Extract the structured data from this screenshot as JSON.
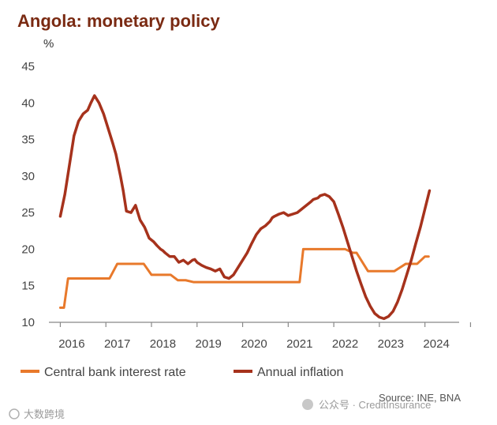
{
  "chart_data": {
    "type": "line",
    "title": "Angola: monetary policy",
    "ylabel": "%",
    "ylim": [
      10,
      45
    ],
    "xlim": [
      2015.75,
      2024.75
    ],
    "yticks": [
      10,
      15,
      20,
      25,
      30,
      35,
      40,
      45
    ],
    "xtick_labels": [
      "2016",
      "2017",
      "2018",
      "2019",
      "2020",
      "2021",
      "2022",
      "2023",
      "2024"
    ],
    "xtick_positions": [
      2016.25,
      2017.25,
      2018.25,
      2019.25,
      2020.25,
      2021.25,
      2022.25,
      2023.25,
      2024.25
    ],
    "year_boundaries": [
      2016,
      2017,
      2018,
      2019,
      2020,
      2021,
      2022,
      2023,
      2024,
      2025
    ],
    "series": [
      {
        "name": "Central bank interest rate",
        "color": "#e8792b",
        "step": true,
        "x": [
          2016.0,
          2016.08,
          2016.17,
          2017.08,
          2017.25,
          2017.83,
          2018.0,
          2018.42,
          2018.58,
          2018.75,
          2018.92,
          2021.25,
          2021.33,
          2022.25,
          2022.42,
          2022.5,
          2022.75,
          2022.92,
          2023.33,
          2023.58,
          2023.83,
          2024.0,
          2024.08
        ],
        "values": [
          12,
          12,
          16,
          16,
          18,
          18,
          16.5,
          16.5,
          15.75,
          15.75,
          15.5,
          15.5,
          20,
          20,
          19.5,
          19.5,
          17,
          17,
          17,
          18,
          18,
          19,
          19
        ]
      },
      {
        "name": "Annual inflation",
        "color": "#a6321c",
        "step": false,
        "x": [
          2016.0,
          2016.1,
          2016.2,
          2016.3,
          2016.4,
          2016.5,
          2016.6,
          2016.67,
          2016.75,
          2016.85,
          2016.95,
          2017.05,
          2017.15,
          2017.22,
          2017.27,
          2017.32,
          2017.38,
          2017.45,
          2017.55,
          2017.65,
          2017.75,
          2017.85,
          2017.95,
          2018.05,
          2018.12,
          2018.2,
          2018.25,
          2018.3,
          2018.4,
          2018.5,
          2018.6,
          2018.7,
          2018.8,
          2018.9,
          2018.95,
          2019.0,
          2019.05,
          2019.1,
          2019.2,
          2019.3,
          2019.4,
          2019.5,
          2019.6,
          2019.7,
          2019.8,
          2019.9,
          2020.0,
          2020.1,
          2020.2,
          2020.3,
          2020.4,
          2020.5,
          2020.6,
          2020.65,
          2020.7,
          2020.8,
          2020.9,
          2021.0,
          2021.1,
          2021.2,
          2021.3,
          2021.4,
          2021.5,
          2021.55,
          2021.6,
          2021.65,
          2021.7,
          2021.8,
          2021.9,
          2022.0,
          2022.1,
          2022.2,
          2022.3,
          2022.4,
          2022.5,
          2022.6,
          2022.7,
          2022.8,
          2022.9,
          2023.0,
          2023.1,
          2023.2,
          2023.3,
          2023.4,
          2023.5,
          2023.6,
          2023.7,
          2023.8,
          2023.9,
          2024.0,
          2024.1
        ],
        "values": [
          24.5,
          27.5,
          31.5,
          35.5,
          37.5,
          38.5,
          39.0,
          40.0,
          41.0,
          40.0,
          38.5,
          36.5,
          34.5,
          33.0,
          31.5,
          30.0,
          28.0,
          25.2,
          25.0,
          26.0,
          24.0,
          23.0,
          21.5,
          21.0,
          20.5,
          20.0,
          19.8,
          19.5,
          19.0,
          19.0,
          18.2,
          18.5,
          18.0,
          18.5,
          18.6,
          18.2,
          18.0,
          17.8,
          17.5,
          17.3,
          17.0,
          17.3,
          16.2,
          16.0,
          16.5,
          17.5,
          18.5,
          19.5,
          20.8,
          22.0,
          22.8,
          23.2,
          23.8,
          24.3,
          24.5,
          24.8,
          25.0,
          24.6,
          24.8,
          25.0,
          25.5,
          26.0,
          26.5,
          26.8,
          26.9,
          27.0,
          27.3,
          27.5,
          27.2,
          26.5,
          24.8,
          23.0,
          21.0,
          19.0,
          17.0,
          15.2,
          13.5,
          12.2,
          11.2,
          10.7,
          10.5,
          10.8,
          11.5,
          12.8,
          14.5,
          16.5,
          18.5,
          20.8,
          23.0,
          25.5,
          28.0
        ]
      }
    ],
    "legend_position": "bottom",
    "source": "Source: INE, BNA"
  },
  "watermark": {
    "left_text": "大数跨境",
    "right_text": "公众号 · CreditInsurance"
  }
}
